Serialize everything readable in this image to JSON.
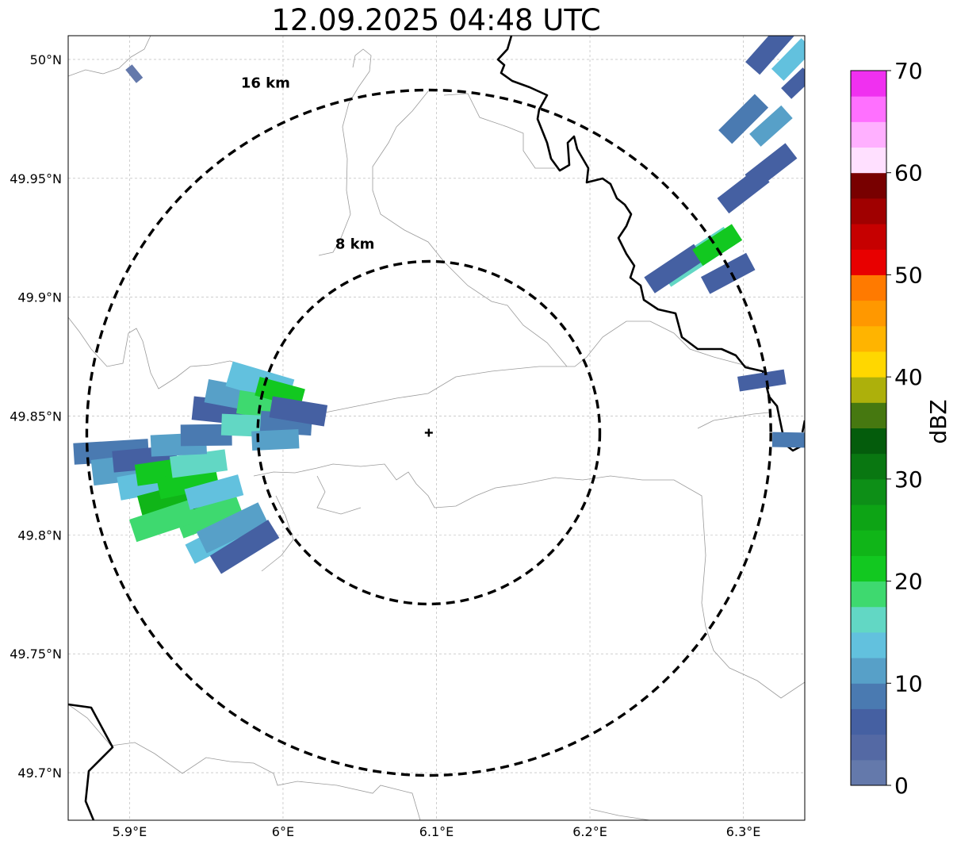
{
  "title": "12.09.2025 04:48 UTC",
  "map": {
    "lon_range": [
      5.86,
      6.34
    ],
    "lat_range": [
      49.68,
      50.01
    ],
    "lon_ticks": [
      {
        "value": 5.9,
        "label": "5.9°E"
      },
      {
        "value": 6.0,
        "label": "6°E"
      },
      {
        "value": 6.1,
        "label": "6.1°E"
      },
      {
        "value": 6.2,
        "label": "6.2°E"
      },
      {
        "value": 6.3,
        "label": "6.3°E"
      }
    ],
    "lat_ticks": [
      {
        "value": 50.0,
        "label": "50°N"
      },
      {
        "value": 49.95,
        "label": "49.95°N"
      },
      {
        "value": 49.9,
        "label": "49.9°N"
      },
      {
        "value": 49.85,
        "label": "49.85°N"
      },
      {
        "value": 49.8,
        "label": "49.8°N"
      },
      {
        "value": 49.75,
        "label": "49.75°N"
      },
      {
        "value": 49.7,
        "label": "49.7°N"
      }
    ],
    "grid": true,
    "center": {
      "lon": 6.095,
      "lat": 49.843
    },
    "rings": [
      {
        "radius_km": 8,
        "label": "8 km"
      },
      {
        "radius_km": 16,
        "label": "16 km"
      }
    ]
  },
  "colorbar": {
    "label": "dBZ",
    "min": 0,
    "max": 70,
    "step": 2.5,
    "tick_labels": [
      "0",
      "10",
      "20",
      "30",
      "40",
      "50",
      "60",
      "70"
    ],
    "colors": [
      "#6479ab",
      "#5469a4",
      "#4560a2",
      "#4a7ab1",
      "#57a0c8",
      "#62c1de",
      "#62d7c4",
      "#3ed96f",
      "#12c820",
      "#10b518",
      "#0da415",
      "#0d8f17",
      "#097711",
      "#045c0c",
      "#467810",
      "#adb00b",
      "#ffd700",
      "#ffb400",
      "#ff9800",
      "#ff7a00",
      "#e80000",
      "#c60000",
      "#a00000",
      "#780000",
      "#ffe0ff",
      "#ffb0ff",
      "#ff70ff",
      "#f030f0"
    ]
  },
  "echoes": [
    {
      "lon": 5.888,
      "lat": 49.835,
      "len_km": 3.5,
      "wid_km": 1.0,
      "dbz": 8
    },
    {
      "lon": 5.9,
      "lat": 49.828,
      "len_km": 3.5,
      "wid_km": 1.2,
      "dbz": 10
    },
    {
      "lon": 5.91,
      "lat": 49.832,
      "len_km": 3.0,
      "wid_km": 1.0,
      "dbz": 5
    },
    {
      "lon": 5.915,
      "lat": 49.822,
      "len_km": 3.2,
      "wid_km": 1.1,
      "dbz": 14
    },
    {
      "lon": 5.925,
      "lat": 49.827,
      "len_km": 3.0,
      "wid_km": 1.0,
      "dbz": 20
    },
    {
      "lon": 5.93,
      "lat": 49.815,
      "len_km": 3.4,
      "wid_km": 1.2,
      "dbz": 24
    },
    {
      "lon": 5.938,
      "lat": 49.822,
      "len_km": 2.8,
      "wid_km": 1.0,
      "dbz": 22
    },
    {
      "lon": 5.94,
      "lat": 49.81,
      "len_km": 2.6,
      "wid_km": 1.0,
      "dbz": 32
    },
    {
      "lon": 5.945,
      "lat": 49.83,
      "len_km": 2.6,
      "wid_km": 1.0,
      "dbz": 17
    },
    {
      "lon": 5.952,
      "lat": 49.808,
      "len_km": 3.0,
      "wid_km": 1.1,
      "dbz": 18
    },
    {
      "lon": 5.922,
      "lat": 49.806,
      "len_km": 3.0,
      "wid_km": 1.1,
      "dbz": 19
    },
    {
      "lon": 5.932,
      "lat": 49.838,
      "len_km": 2.6,
      "wid_km": 1.0,
      "dbz": 12
    },
    {
      "lon": 5.958,
      "lat": 49.798,
      "len_km": 3.0,
      "wid_km": 1.0,
      "dbz": 14
    },
    {
      "lon": 5.967,
      "lat": 49.803,
      "len_km": 3.2,
      "wid_km": 1.1,
      "dbz": 11
    },
    {
      "lon": 5.975,
      "lat": 49.795,
      "len_km": 3.2,
      "wid_km": 1.0,
      "dbz": 6
    },
    {
      "lon": 5.955,
      "lat": 49.818,
      "len_km": 2.6,
      "wid_km": 1.0,
      "dbz": 13
    },
    {
      "lon": 5.95,
      "lat": 49.842,
      "len_km": 2.4,
      "wid_km": 1.0,
      "dbz": 9
    },
    {
      "lon": 5.962,
      "lat": 49.852,
      "len_km": 3.0,
      "wid_km": 1.1,
      "dbz": 7
    },
    {
      "lon": 5.972,
      "lat": 49.858,
      "len_km": 3.2,
      "wid_km": 1.1,
      "dbz": 11
    },
    {
      "lon": 5.985,
      "lat": 49.864,
      "len_km": 3.0,
      "wid_km": 1.2,
      "dbz": 14
    },
    {
      "lon": 5.99,
      "lat": 49.854,
      "len_km": 2.8,
      "wid_km": 1.1,
      "dbz": 18
    },
    {
      "lon": 5.978,
      "lat": 49.846,
      "len_km": 2.6,
      "wid_km": 1.0,
      "dbz": 15
    },
    {
      "lon": 5.998,
      "lat": 49.86,
      "len_km": 2.2,
      "wid_km": 0.9,
      "dbz": 22
    },
    {
      "lon": 6.002,
      "lat": 49.847,
      "len_km": 2.4,
      "wid_km": 1.0,
      "dbz": 9
    },
    {
      "lon": 6.01,
      "lat": 49.852,
      "len_km": 2.6,
      "wid_km": 1.0,
      "dbz": 6
    },
    {
      "lon": 5.995,
      "lat": 49.84,
      "len_km": 2.2,
      "wid_km": 0.9,
      "dbz": 11
    },
    {
      "lon": 6.27,
      "lat": 49.917,
      "len_km": 3.6,
      "wid_km": 1.0,
      "dbz": 16
    },
    {
      "lon": 6.255,
      "lat": 49.912,
      "len_km": 2.8,
      "wid_km": 0.9,
      "dbz": 6
    },
    {
      "lon": 6.283,
      "lat": 49.922,
      "len_km": 2.2,
      "wid_km": 0.9,
      "dbz": 21
    },
    {
      "lon": 6.29,
      "lat": 49.91,
      "len_km": 2.4,
      "wid_km": 0.9,
      "dbz": 7
    },
    {
      "lon": 6.3,
      "lat": 49.945,
      "len_km": 2.4,
      "wid_km": 0.9,
      "dbz": 5
    },
    {
      "lon": 6.318,
      "lat": 49.955,
      "len_km": 2.4,
      "wid_km": 0.9,
      "dbz": 7
    },
    {
      "lon": 6.3,
      "lat": 49.975,
      "len_km": 2.4,
      "wid_km": 0.9,
      "dbz": 8
    },
    {
      "lon": 6.318,
      "lat": 49.972,
      "len_km": 2.0,
      "wid_km": 0.8,
      "dbz": 12
    },
    {
      "lon": 6.318,
      "lat": 50.005,
      "len_km": 2.6,
      "wid_km": 0.9,
      "dbz": 6
    },
    {
      "lon": 6.332,
      "lat": 50.0,
      "len_km": 2.0,
      "wid_km": 0.8,
      "dbz": 13
    },
    {
      "lon": 6.335,
      "lat": 49.99,
      "len_km": 1.4,
      "wid_km": 0.7,
      "dbz": 5
    },
    {
      "lon": 6.312,
      "lat": 49.865,
      "len_km": 2.2,
      "wid_km": 0.7,
      "dbz": 7
    },
    {
      "lon": 6.33,
      "lat": 49.84,
      "len_km": 1.6,
      "wid_km": 0.7,
      "dbz": 8
    },
    {
      "lon": 5.903,
      "lat": 49.994,
      "len_km": 0.8,
      "wid_km": 0.4,
      "dbz": 2
    }
  ]
}
